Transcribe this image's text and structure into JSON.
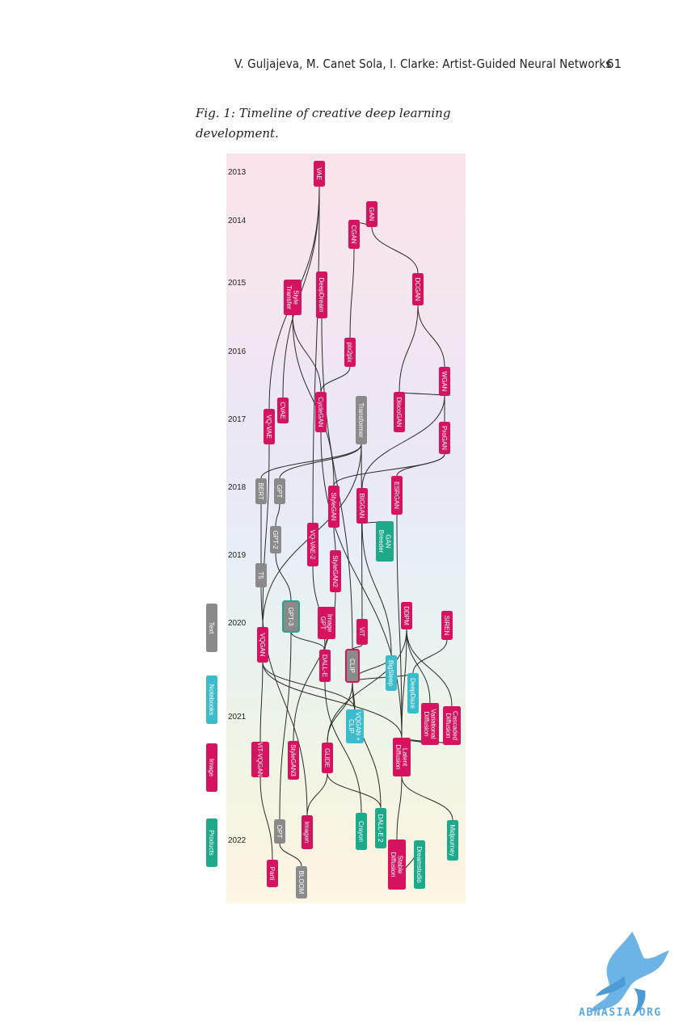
{
  "header": {
    "running_head": "V. Guljajeva, M. Canet Sola, I. Clarke: Artist-Guided Neural Networks",
    "page_number": "61"
  },
  "caption": "Fig. 1:  Timeline of creative deep learning development.",
  "colors": {
    "text": "#8a8a8a",
    "notebooks": "#3bbccc",
    "image": "#d5135f",
    "products": "#1ea98a"
  },
  "legend": [
    {
      "key": "text",
      "label": "Text"
    },
    {
      "key": "notebooks",
      "label": "Notebooks"
    },
    {
      "key": "image",
      "label": "Image"
    },
    {
      "key": "products",
      "label": "Products"
    }
  ],
  "years": [
    "2013",
    "2014",
    "2015",
    "2016",
    "2017",
    "2018",
    "2019",
    "2020",
    "2021",
    "2022"
  ],
  "nodes": {
    "vae": "VAE",
    "gan": "GAN",
    "cgan": "CGAN",
    "style_transfer": "Style Transfer",
    "deepdream": "DeepDream",
    "dcgan": "DCGAN",
    "pix2pix": "pix2pix",
    "wgan": "WGAN",
    "cvae": "CVAE",
    "vqvae": "VQ-VAE",
    "cyclegan": "CycleGAN",
    "transformer": "Transformer",
    "discogan": "DiscoGAN",
    "progan": "ProGAN",
    "bert": "BERT",
    "gpt": "GPT",
    "stylegan": "StyleGAN",
    "biggan": "BIGGAN",
    "esrgan": "ESRGAN",
    "gpt2": "GPT-2",
    "vqvae2": "VQ-VAE-2",
    "ganbreeder": "GAN Breeder",
    "t5": "T5",
    "stylegan2": "StyleGAN2",
    "gpt3": "GPT-3",
    "imagegpt": "Image GPT",
    "vit": "ViT",
    "ddpm": "DDPM",
    "siren": "SIREN",
    "vqgan": "VQGAN",
    "dalle": "DALL-E",
    "clip": "CLIP",
    "bigsleep": "BigSleep",
    "deepdaze": "DeepDaze",
    "variational": "Variational Diffusion",
    "cascaded": "Cascaded Diffusion",
    "vqganclip": "VQGAN + CLIP",
    "vitvqgan": "ViT-VQGAN",
    "stylegan3": "StyleGAN3",
    "glide": "GLIDE",
    "latent": "Latent Diffusion",
    "opt": "OPT",
    "imagen": "Imagen",
    "crayon": "Crayon",
    "dalle2": "DALL-E 2",
    "midjourney": "Midjourney",
    "parti": "Parti",
    "bloom": "BLOOM",
    "stable": "Stable Diffusion",
    "dreamstudio": "Dreamstudio"
  },
  "watermark": "ABNASIA.ORG"
}
